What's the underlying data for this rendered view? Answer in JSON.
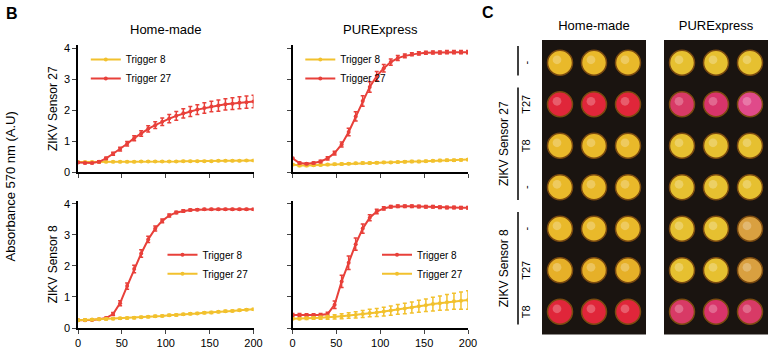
{
  "figure": {
    "panel_label": "B",
    "ylabel": "Absorbance 570 nm (A.U)"
  },
  "chart_data": [
    {
      "type": "line",
      "title": "Home-made",
      "ylabel": "ZIKV Sensor 27",
      "x": [
        0,
        8,
        16,
        24,
        32,
        40,
        48,
        56,
        64,
        72,
        80,
        88,
        96,
        104,
        112,
        120,
        128,
        136,
        144,
        152,
        160,
        168,
        176,
        184,
        192,
        200
      ],
      "xlim": [
        0,
        200
      ],
      "xticks": [
        0,
        50,
        100,
        150,
        200
      ],
      "ylim": [
        0,
        4.1
      ],
      "yticks": [
        0,
        1,
        2,
        3,
        4
      ],
      "legend": "upper left",
      "tick_labels": "y",
      "marker": "circle",
      "series": [
        {
          "name": "Trigger 8",
          "color": "#f2c12e",
          "values": [
            0.33,
            0.33,
            0.33,
            0.33,
            0.34,
            0.34,
            0.34,
            0.34,
            0.34,
            0.35,
            0.35,
            0.35,
            0.35,
            0.35,
            0.35,
            0.36,
            0.36,
            0.36,
            0.36,
            0.36,
            0.37,
            0.37,
            0.37,
            0.37,
            0.38,
            0.38
          ],
          "errors": [
            0.02,
            0.02,
            0.02,
            0.02,
            0.02,
            0.02,
            0.02,
            0.02,
            0.02,
            0.02,
            0.02,
            0.02,
            0.02,
            0.02,
            0.02,
            0.02,
            0.02,
            0.02,
            0.02,
            0.02,
            0.02,
            0.02,
            0.02,
            0.02,
            0.02,
            0.02
          ]
        },
        {
          "name": "Trigger 27",
          "color": "#e8403a",
          "values": [
            0.32,
            0.3,
            0.3,
            0.34,
            0.45,
            0.6,
            0.75,
            0.92,
            1.1,
            1.25,
            1.4,
            1.52,
            1.63,
            1.73,
            1.82,
            1.9,
            1.96,
            2.02,
            2.07,
            2.12,
            2.15,
            2.19,
            2.21,
            2.24,
            2.26,
            2.28
          ],
          "errors": [
            0.02,
            0.02,
            0.02,
            0.03,
            0.04,
            0.05,
            0.06,
            0.07,
            0.08,
            0.09,
            0.1,
            0.11,
            0.12,
            0.13,
            0.14,
            0.15,
            0.16,
            0.16,
            0.17,
            0.17,
            0.18,
            0.18,
            0.19,
            0.19,
            0.2,
            0.2
          ]
        }
      ]
    },
    {
      "type": "line",
      "title": "PURExpress",
      "x": [
        0,
        8,
        16,
        24,
        32,
        40,
        48,
        56,
        64,
        72,
        80,
        88,
        96,
        104,
        112,
        120,
        128,
        136,
        144,
        152,
        160,
        168,
        176,
        184,
        192,
        200
      ],
      "xlim": [
        0,
        200
      ],
      "xticks": [
        0,
        50,
        100,
        150,
        200
      ],
      "ylim": [
        0,
        4.1
      ],
      "yticks": [
        0,
        1,
        2,
        3,
        4
      ],
      "legend": "upper left",
      "tick_labels": false,
      "marker": "circle",
      "series": [
        {
          "name": "Trigger 8",
          "color": "#f2c12e",
          "values": [
            0.25,
            0.22,
            0.22,
            0.23,
            0.24,
            0.25,
            0.26,
            0.27,
            0.28,
            0.29,
            0.3,
            0.3,
            0.31,
            0.32,
            0.32,
            0.33,
            0.34,
            0.35,
            0.35,
            0.36,
            0.37,
            0.38,
            0.39,
            0.39,
            0.4,
            0.41
          ],
          "errors": [
            0.03,
            0.03,
            0.03,
            0.03,
            0.03,
            0.03,
            0.03,
            0.03,
            0.03,
            0.03,
            0.03,
            0.03,
            0.03,
            0.03,
            0.03,
            0.03,
            0.03,
            0.03,
            0.03,
            0.03,
            0.03,
            0.03,
            0.03,
            0.03,
            0.03,
            0.03
          ]
        },
        {
          "name": "Trigger 27",
          "color": "#e8403a",
          "values": [
            0.45,
            0.3,
            0.28,
            0.3,
            0.35,
            0.45,
            0.62,
            0.9,
            1.3,
            1.8,
            2.3,
            2.75,
            3.1,
            3.35,
            3.55,
            3.68,
            3.75,
            3.8,
            3.83,
            3.85,
            3.86,
            3.86,
            3.87,
            3.87,
            3.87,
            3.87
          ],
          "errors": [
            0.03,
            0.03,
            0.03,
            0.03,
            0.04,
            0.05,
            0.06,
            0.08,
            0.12,
            0.15,
            0.17,
            0.17,
            0.15,
            0.12,
            0.1,
            0.08,
            0.06,
            0.05,
            0.05,
            0.05,
            0.05,
            0.05,
            0.05,
            0.05,
            0.05,
            0.05
          ]
        }
      ]
    },
    {
      "type": "line",
      "ylabel": "ZIKV Sensor 8",
      "x": [
        0,
        8,
        16,
        24,
        32,
        40,
        48,
        56,
        64,
        72,
        80,
        88,
        96,
        104,
        112,
        120,
        128,
        136,
        144,
        152,
        160,
        168,
        176,
        184,
        192,
        200
      ],
      "xlim": [
        0,
        200
      ],
      "xticks": [
        0,
        50,
        100,
        150,
        200
      ],
      "ylim": [
        0,
        4.1
      ],
      "yticks": [
        0,
        1,
        2,
        3,
        4
      ],
      "legend": "right",
      "tick_labels": true,
      "marker": "circle",
      "series": [
        {
          "name": "Trigger 8",
          "color": "#e8403a",
          "values": [
            0.25,
            0.25,
            0.26,
            0.28,
            0.32,
            0.45,
            0.8,
            1.35,
            1.9,
            2.4,
            2.85,
            3.2,
            3.45,
            3.62,
            3.72,
            3.77,
            3.8,
            3.81,
            3.82,
            3.82,
            3.82,
            3.82,
            3.82,
            3.82,
            3.82,
            3.82
          ],
          "errors": [
            0.02,
            0.02,
            0.02,
            0.02,
            0.03,
            0.05,
            0.08,
            0.1,
            0.12,
            0.12,
            0.1,
            0.08,
            0.06,
            0.05,
            0.04,
            0.04,
            0.03,
            0.03,
            0.03,
            0.03,
            0.03,
            0.03,
            0.03,
            0.03,
            0.03,
            0.03
          ]
        },
        {
          "name": "Trigger 27",
          "color": "#f2c12e",
          "values": [
            0.25,
            0.26,
            0.27,
            0.28,
            0.29,
            0.3,
            0.31,
            0.32,
            0.33,
            0.35,
            0.36,
            0.38,
            0.39,
            0.41,
            0.42,
            0.44,
            0.46,
            0.47,
            0.49,
            0.5,
            0.52,
            0.54,
            0.55,
            0.57,
            0.59,
            0.6
          ],
          "errors": [
            0.03,
            0.03,
            0.03,
            0.03,
            0.03,
            0.03,
            0.03,
            0.03,
            0.03,
            0.03,
            0.03,
            0.03,
            0.03,
            0.03,
            0.03,
            0.03,
            0.03,
            0.03,
            0.03,
            0.03,
            0.03,
            0.03,
            0.03,
            0.03,
            0.03,
            0.03
          ]
        }
      ]
    },
    {
      "type": "line",
      "x": [
        0,
        8,
        16,
        24,
        32,
        40,
        48,
        56,
        64,
        72,
        80,
        88,
        96,
        104,
        112,
        120,
        128,
        136,
        144,
        152,
        160,
        168,
        176,
        184,
        192,
        200
      ],
      "xlim": [
        0,
        200
      ],
      "xticks": [
        0,
        50,
        100,
        150,
        200
      ],
      "ylim": [
        0,
        4.1
      ],
      "yticks": [
        0,
        1,
        2,
        3,
        4
      ],
      "legend": "right",
      "tick_labels": "x",
      "marker": "circle",
      "series": [
        {
          "name": "Trigger 8",
          "color": "#e8403a",
          "values": [
            0.42,
            0.42,
            0.41,
            0.41,
            0.42,
            0.45,
            0.75,
            1.5,
            2.1,
            2.7,
            3.2,
            3.55,
            3.75,
            3.85,
            3.9,
            3.92,
            3.92,
            3.92,
            3.91,
            3.9,
            3.9,
            3.89,
            3.88,
            3.88,
            3.87,
            3.87
          ],
          "errors": [
            0.05,
            0.05,
            0.05,
            0.05,
            0.05,
            0.06,
            0.12,
            0.2,
            0.22,
            0.2,
            0.15,
            0.1,
            0.07,
            0.05,
            0.04,
            0.04,
            0.04,
            0.04,
            0.04,
            0.04,
            0.04,
            0.04,
            0.04,
            0.04,
            0.04,
            0.04
          ]
        },
        {
          "name": "Trigger 27",
          "color": "#f2c12e",
          "values": [
            0.3,
            0.3,
            0.31,
            0.32,
            0.33,
            0.34,
            0.36,
            0.38,
            0.4,
            0.42,
            0.45,
            0.48,
            0.5,
            0.53,
            0.56,
            0.6,
            0.63,
            0.66,
            0.7,
            0.73,
            0.77,
            0.8,
            0.83,
            0.86,
            0.88,
            0.9
          ],
          "errors": [
            0.03,
            0.03,
            0.04,
            0.04,
            0.05,
            0.06,
            0.07,
            0.08,
            0.09,
            0.1,
            0.11,
            0.12,
            0.13,
            0.14,
            0.15,
            0.16,
            0.17,
            0.18,
            0.19,
            0.2,
            0.22,
            0.23,
            0.25,
            0.26,
            0.28,
            0.3
          ]
        }
      ]
    }
  ],
  "panel_c": {
    "label": "C",
    "column_titles": [
      "Home-made",
      "PURExpress"
    ],
    "groups": [
      {
        "rows": [
          {
            "label": "-",
            "wells": [
              [
                "#e9b92a",
                "#e9b92a",
                "#e9b92a"
              ],
              [
                "#e6c030",
                "#e6c030",
                "#e6c030"
              ]
            ]
          }
        ]
      },
      {
        "name": "ZIKV Sensor 27",
        "rows": [
          {
            "label": "T27",
            "wells": [
              [
                "#e0263a",
                "#e0263a",
                "#e0263a"
              ],
              [
                "#d83a66",
                "#d8346a",
                "#e04a8a"
              ]
            ]
          },
          {
            "label": "T8",
            "wells": [
              [
                "#e9b92a",
                "#e9b92a",
                "#e9b92a"
              ],
              [
                "#e6c030",
                "#e6c030",
                "#e6c030"
              ]
            ]
          },
          {
            "label": "-",
            "wells": [
              [
                "#e9b92a",
                "#e9b92a",
                "#e9b92a"
              ],
              [
                "#e6c030",
                "#e6c030",
                "#e6c030"
              ]
            ]
          }
        ]
      },
      {
        "name": "ZIKV Sensor 8",
        "rows": [
          {
            "label": "-",
            "wells": [
              [
                "#e9b92a",
                "#e9b92a",
                "#e9b92a"
              ],
              [
                "#e6c030",
                "#e6c030",
                "#d9a040"
              ]
            ]
          },
          {
            "label": "T27",
            "wells": [
              [
                "#e6b028",
                "#e6b028",
                "#e6b028"
              ],
              [
                "#e6c030",
                "#e6c030",
                "#d9a040"
              ]
            ]
          },
          {
            "label": "T8",
            "wells": [
              [
                "#e0263a",
                "#e0263a",
                "#e0263a"
              ],
              [
                "#d83a66",
                "#d8346a",
                "#d83a66"
              ]
            ]
          }
        ]
      }
    ]
  }
}
